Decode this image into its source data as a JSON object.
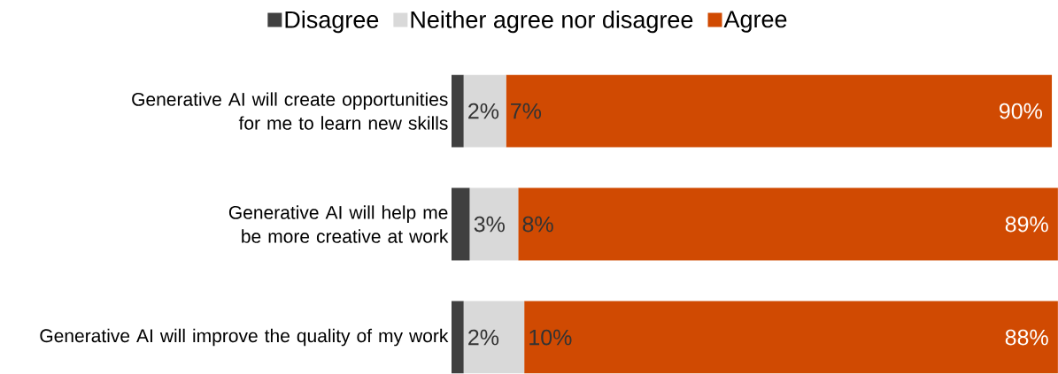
{
  "chart_data": {
    "type": "bar",
    "orientation": "horizontal",
    "stacked": true,
    "categories": [
      "Generative AI will create opportunities for me to learn new skills",
      "Generative AI will help me be more creative at work",
      "Generative AI will improve the quality of my work"
    ],
    "series": [
      {
        "name": "Disagree",
        "color": "#404040",
        "values": [
          2,
          3,
          2
        ],
        "value_labels": [
          "2%",
          "3%",
          "2%"
        ]
      },
      {
        "name": "Neither agree nor disagree",
        "color": "#d9d9d9",
        "values": [
          7,
          8,
          10
        ],
        "value_labels": [
          "7%",
          "8%",
          "10%"
        ]
      },
      {
        "name": "Agree",
        "color": "#d04a02",
        "values": [
          90,
          89,
          88
        ],
        "value_labels": [
          "90%",
          "89%",
          "88%"
        ]
      }
    ],
    "legend": "top",
    "tick_labels": "y"
  }
}
